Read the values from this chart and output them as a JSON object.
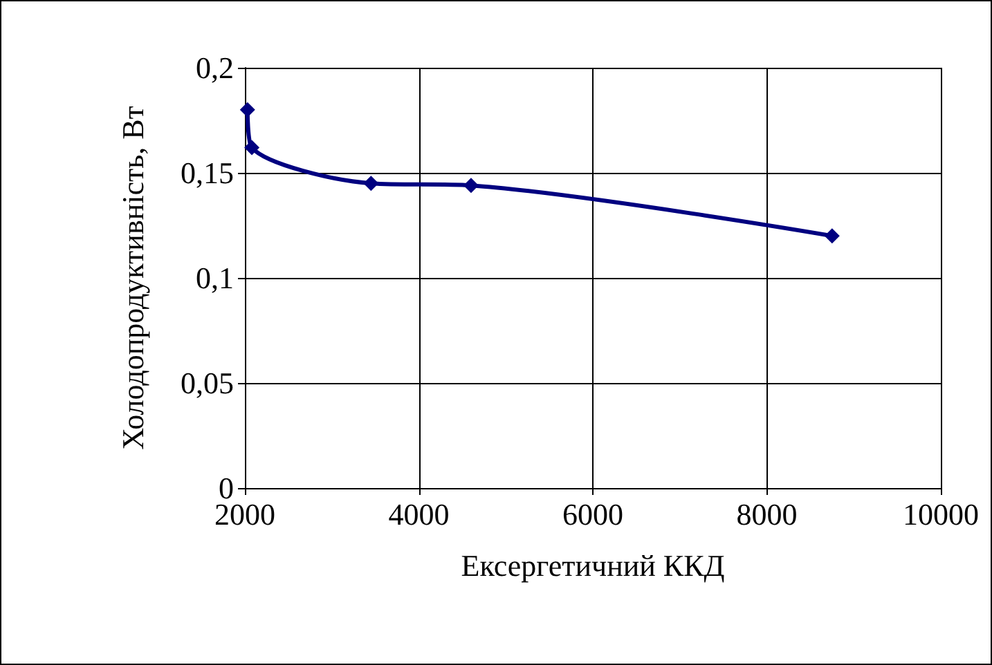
{
  "chart_data": {
    "type": "line",
    "xlabel": "Ексергетичний ККД",
    "ylabel": "Холодопродуктивність, Вт",
    "x": [
      2030,
      2080,
      3450,
      4600,
      8750
    ],
    "series": [
      {
        "color": "#000080",
        "values": [
          0.18,
          0.162,
          0.145,
          0.144,
          0.12
        ]
      }
    ],
    "xlim": [
      2000,
      10000
    ],
    "xticks": [
      2000,
      4000,
      6000,
      8000,
      10000
    ],
    "ylim": [
      0,
      0.2
    ],
    "yticks": [
      {
        "value": 0,
        "label": "0"
      },
      {
        "value": 0.05,
        "label": "0,05"
      },
      {
        "value": 0.1,
        "label": "0,1"
      },
      {
        "value": 0.15,
        "label": "0,15"
      },
      {
        "value": 0.2,
        "label": "0,2"
      }
    ],
    "grid": true,
    "marker": "diamond",
    "line_style": "solid"
  }
}
